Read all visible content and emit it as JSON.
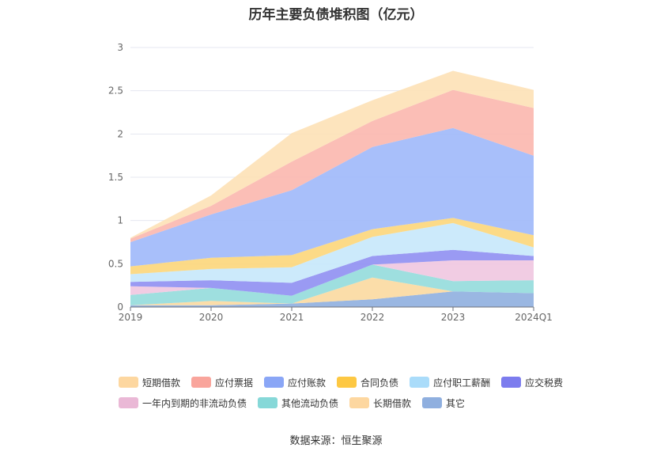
{
  "chart_data": {
    "type": "area",
    "stacked": true,
    "title": "历年主要负债堆积图（亿元）",
    "xlabel": "",
    "ylabel": "",
    "categories": [
      "2019",
      "2020",
      "2021",
      "2022",
      "2023",
      "2024Q1"
    ],
    "yticks": [
      "0",
      "0.5",
      "1",
      "1.5",
      "2",
      "2.5",
      "3"
    ],
    "ylim": [
      0,
      3
    ],
    "grid": true,
    "legend_position": "bottom",
    "series": [
      {
        "name": "其它",
        "color": "#8fafdf",
        "values": [
          0.02,
          0.02,
          0.04,
          0.09,
          0.18,
          0.16
        ]
      },
      {
        "name": "长期借款",
        "color": "#fbd9a0",
        "values": [
          0.0,
          0.05,
          0.0,
          0.25,
          0.0,
          0.0
        ]
      },
      {
        "name": "其他流动负债",
        "color": "#93dcdc",
        "values": [
          0.12,
          0.15,
          0.09,
          0.15,
          0.12,
          0.15
        ]
      },
      {
        "name": "一年内到期的非流动负债",
        "color": "#f0c6e0",
        "values": [
          0.1,
          0.0,
          0.0,
          0.0,
          0.24,
          0.23
        ]
      },
      {
        "name": "应交税费",
        "color": "#8f8ff2",
        "values": [
          0.05,
          0.09,
          0.15,
          0.1,
          0.12,
          0.05
        ]
      },
      {
        "name": "应付职工薪酬",
        "color": "#c6e8fb",
        "values": [
          0.09,
          0.13,
          0.18,
          0.22,
          0.31,
          0.1
        ]
      },
      {
        "name": "合同负债",
        "color": "#fcd67a",
        "values": [
          0.09,
          0.13,
          0.14,
          0.09,
          0.06,
          0.14
        ]
      },
      {
        "name": "应付账款",
        "color": "#9eb8fa",
        "values": [
          0.28,
          0.5,
          0.75,
          0.95,
          1.04,
          0.92
        ]
      },
      {
        "name": "应付票据",
        "color": "#fbb7ae",
        "values": [
          0.04,
          0.1,
          0.33,
          0.3,
          0.44,
          0.55
        ]
      },
      {
        "name": "短期借款",
        "color": "#fde1b6",
        "values": [
          0.01,
          0.12,
          0.33,
          0.24,
          0.22,
          0.21
        ]
      }
    ]
  },
  "legend": {
    "row1": [
      {
        "name": "短期借款",
        "color": "#fdd7a0"
      },
      {
        "name": "应付票据",
        "color": "#f9a59c"
      },
      {
        "name": "应付账款",
        "color": "#8aa6f6"
      },
      {
        "name": "合同负债",
        "color": "#fdc843"
      },
      {
        "name": "应付职工薪酬",
        "color": "#aadcfa"
      },
      {
        "name": "应交税费",
        "color": "#7c7cee"
      }
    ],
    "row2": [
      {
        "name": "一年内到期的非流动负债",
        "color": "#eab8d6"
      },
      {
        "name": "其他流动负债",
        "color": "#86d8d8"
      },
      {
        "name": "长期借款",
        "color": "#fdd7a0"
      },
      {
        "name": "其它",
        "color": "#8fafdf"
      }
    ]
  },
  "source": "数据来源：恒生聚源"
}
